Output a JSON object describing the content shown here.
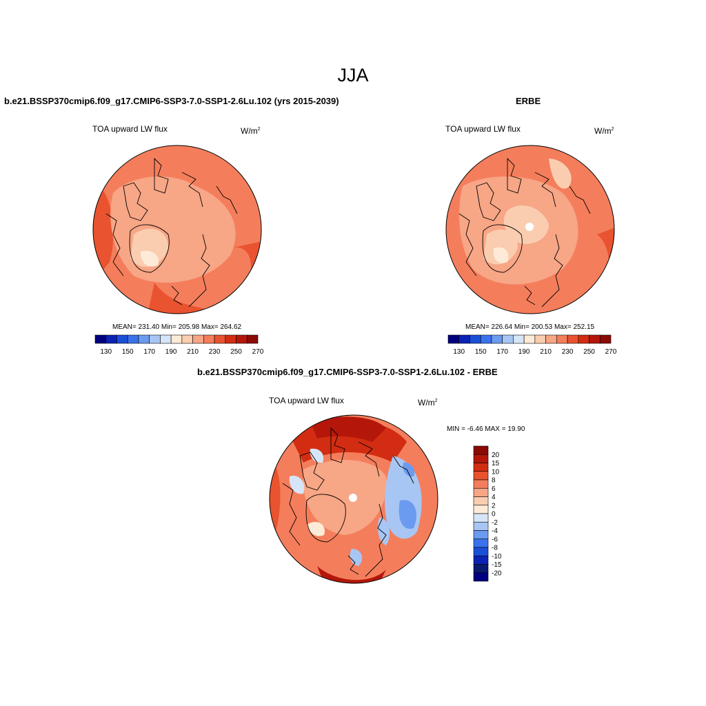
{
  "title": "JJA",
  "panels": [
    {
      "case": "b.e21.BSSP370cmip6.f09_g17.CMIP6-SSP3-7.0-SSP1-2.6Lu.102 (yrs 2015-2039)",
      "variable": "TOA upward LW flux",
      "unit_base": "W/m",
      "unit_exp": "2",
      "stats": "MEAN= 231.40  Min= 205.98  Max= 264.62"
    },
    {
      "case": "ERBE",
      "variable": "TOA upward LW flux",
      "unit_base": "W/m",
      "unit_exp": "2",
      "stats": "MEAN= 226.64  Min= 200.53  Max= 252.15"
    },
    {
      "case": "b.e21.BSSP370cmip6.f09_g17.CMIP6-SSP3-7.0-SSP1-2.6Lu.102 - ERBE",
      "variable": "TOA upward LW flux",
      "unit_base": "W/m",
      "unit_exp": "2",
      "stats": "MIN =  -6.46 MAX =  19.90"
    }
  ],
  "abs_colorbar": {
    "colors": [
      "#00007f",
      "#0a23b4",
      "#1a4fd8",
      "#3a72ec",
      "#6b9bf0",
      "#a8c6f4",
      "#d6e6f8",
      "#fdebd8",
      "#fbcdb0",
      "#f7a686",
      "#f47e5c",
      "#e9532f",
      "#d22d12",
      "#b4170a",
      "#8b0a04"
    ],
    "labels": [
      "130",
      "150",
      "170",
      "190",
      "210",
      "230",
      "250",
      "270"
    ]
  },
  "diff_colorbar": {
    "colors": [
      "#8b0a04",
      "#b4170a",
      "#d22d12",
      "#e9532f",
      "#f47e5c",
      "#f7a686",
      "#fbcdb0",
      "#fdebd8",
      "#d6e6f8",
      "#a8c6f4",
      "#6b9bf0",
      "#3a72ec",
      "#1a4fd8",
      "#0a23b4",
      "#0a1a6e",
      "#00007f"
    ],
    "labels": [
      "20",
      "15",
      "10",
      "8",
      "6",
      "4",
      "2",
      "0",
      "-2",
      "-4",
      "-6",
      "-8",
      "-10",
      "-15",
      "-20"
    ]
  }
}
